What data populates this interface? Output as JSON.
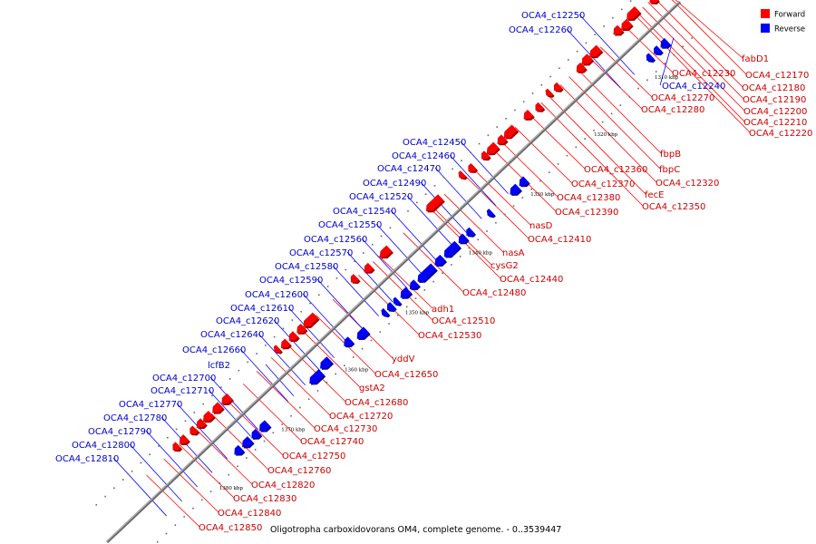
{
  "caption": "Oligotropha carboxidovorans OM4, complete genome. - 0..3539447",
  "legend": [
    {
      "label": "Forward",
      "color": "#ff0000"
    },
    {
      "label": "Reverse",
      "color": "#0000ff"
    }
  ],
  "colors": {
    "forward": "#ff0000",
    "reverse": "#0000ff",
    "backbone": "#888888"
  },
  "kbp_ticks": [
    "1310 kbp",
    "1320 kbp",
    "1330 kbp",
    "1340 kbp",
    "1350 kbp",
    "1360 kbp",
    "1370 kbp",
    "1380 kbp"
  ],
  "forward_labels": [
    "fabD1",
    "OCA4_c12170",
    "OCA4_c12180",
    "OCA4_c12190",
    "OCA4_c12200",
    "OCA4_c12210",
    "OCA4_c12220",
    "OCA4_c12230",
    "OCA4_c12270",
    "OCA4_c12280",
    "fbpB",
    "fbpC",
    "OCA4_c12360",
    "OCA4_c12320",
    "OCA4_c12370",
    "fecE",
    "OCA4_c12350",
    "OCA4_c12380",
    "OCA4_c12390",
    "nasD",
    "OCA4_c12410",
    "nasA",
    "cysG2",
    "OCA4_c12440",
    "OCA4_c12480",
    "adh1",
    "OCA4_c12510",
    "OCA4_c12530",
    "yddV",
    "OCA4_c12650",
    "gstA2",
    "OCA4_c12680",
    "OCA4_c12720",
    "OCA4_c12730",
    "OCA4_c12740",
    "OCA4_c12750",
    "OCA4_c12760",
    "OCA4_c12820",
    "OCA4_c12830",
    "OCA4_c12840",
    "OCA4_c12850"
  ],
  "reverse_labels": [
    "OCA4_c12250",
    "OCA4_c12260",
    "OCA4_c12240",
    "OCA4_c12450",
    "OCA4_c12460",
    "OCA4_c12470",
    "OCA4_c12490",
    "OCA4_c12520",
    "OCA4_c12540",
    "OCA4_c12550",
    "OCA4_c12560",
    "OCA4_c12570",
    "OCA4_c12580",
    "OCA4_c12590",
    "OCA4_c12600",
    "OCA4_c12610",
    "OCA4_c12620",
    "OCA4_c12640",
    "OCA4_c12660",
    "lcfB2",
    "OCA4_c12700",
    "OCA4_c12710",
    "OCA4_c12770",
    "OCA4_c12780",
    "OCA4_c12790",
    "OCA4_c12800",
    "OCA4_c12810"
  ]
}
